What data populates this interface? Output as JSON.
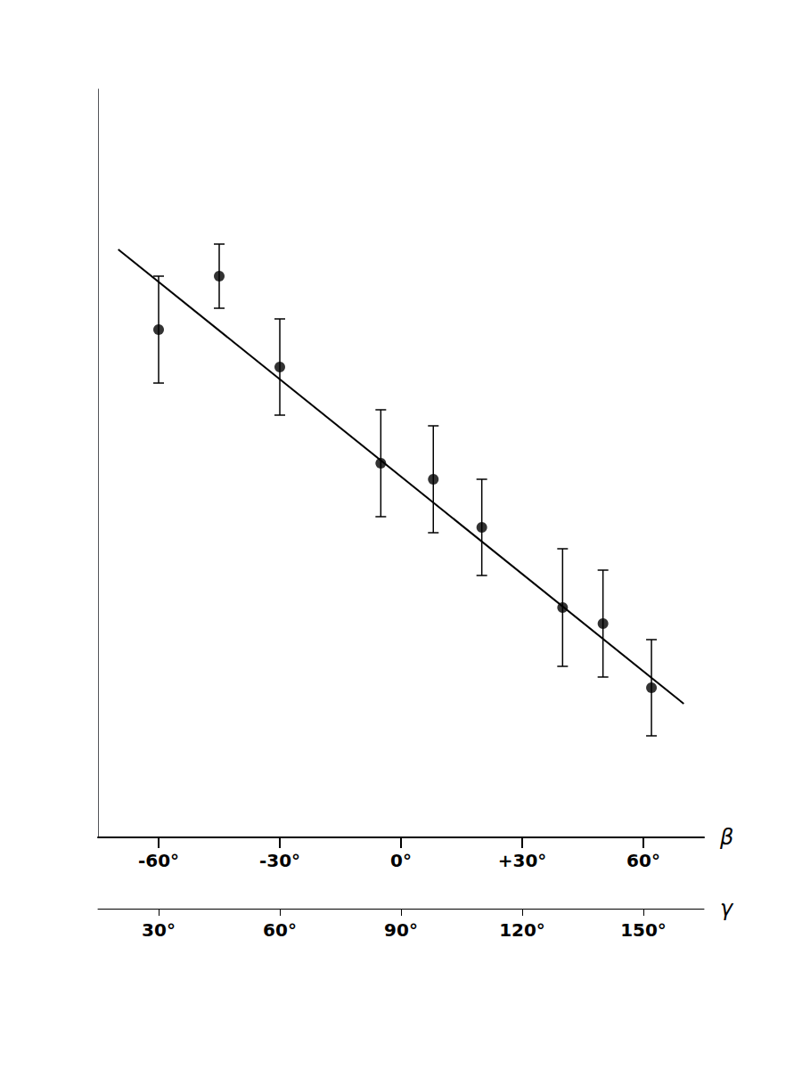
{
  "chart_data": {
    "type": "scatter",
    "series": [
      {
        "type": "scatter",
        "x": [
          -60,
          -45,
          -30,
          -5,
          8,
          20,
          40,
          50,
          62
        ],
        "values": [
          8.5,
          9.5,
          7.8,
          6.0,
          5.7,
          4.8,
          3.3,
          3.0,
          1.8
        ],
        "yerr": [
          1.0,
          0.6,
          0.9,
          1.0,
          1.0,
          0.9,
          1.1,
          1.0,
          0.9
        ],
        "color": "#000000",
        "marker": "circle"
      },
      {
        "type": "line",
        "x": [
          -70,
          70
        ],
        "values": [
          10.0,
          1.5
        ],
        "color": "#000000",
        "line_style": "solid"
      }
    ],
    "xlim": [
      -75,
      75
    ],
    "xticks": [
      {
        "value": -60,
        "label": "-60°"
      },
      {
        "value": -30,
        "label": "-30°"
      },
      {
        "value": 0,
        "label": "0°"
      },
      {
        "value": 30,
        "label": "+30°"
      },
      {
        "value": 60,
        "label": "60°"
      }
    ],
    "xlabel": "β",
    "x2lim": [
      15,
      165
    ],
    "x2ticks": [
      {
        "value": 30,
        "label": "30°"
      },
      {
        "value": 60,
        "label": "60°"
      },
      {
        "value": 90,
        "label": "90°"
      },
      {
        "value": 120,
        "label": "120°"
      },
      {
        "value": 150,
        "label": "150°"
      }
    ],
    "x2label": "γ",
    "ylim": [
      -1,
      13
    ],
    "grid": false,
    "tick_labels": "x"
  }
}
